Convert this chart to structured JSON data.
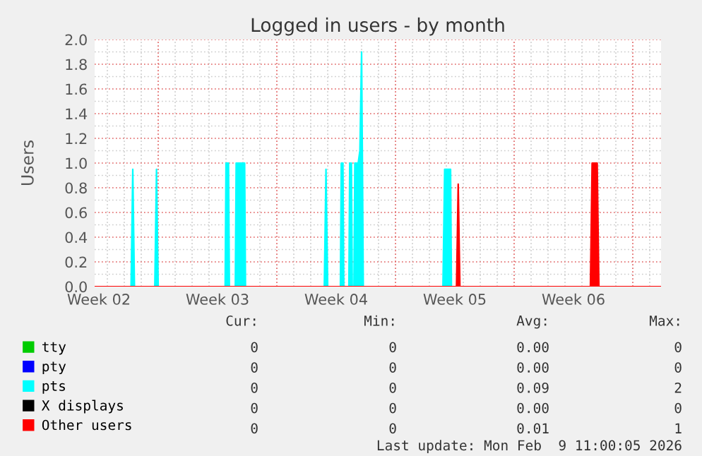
{
  "chart_data": {
    "type": "area",
    "title": "Logged in users - by month",
    "ylabel": "Users",
    "xlim": [
      "2026-01-08T06:00",
      "2026-02-10T16:00"
    ],
    "xticks": [
      {
        "value": "2026-01-08T12:00",
        "label": "Week 02"
      },
      {
        "value": "2026-01-15T12:00",
        "label": "Week 03"
      },
      {
        "value": "2026-01-22T12:00",
        "label": "Week 04"
      },
      {
        "value": "2026-01-29T12:00",
        "label": "Week 05"
      },
      {
        "value": "2026-02-05T12:00",
        "label": "Week 06"
      }
    ],
    "ylim": [
      0,
      2.0
    ],
    "yticks": [
      {
        "value": 0,
        "label": "0.0"
      },
      {
        "value": 0.2,
        "label": "0.2"
      },
      {
        "value": 0.4,
        "label": "0.4"
      },
      {
        "value": 0.6,
        "label": "0.6"
      },
      {
        "value": 0.8,
        "label": "0.8"
      },
      {
        "value": 1.0,
        "label": "1.0"
      },
      {
        "value": 1.2,
        "label": "1.2"
      },
      {
        "value": 1.4,
        "label": "1.4"
      },
      {
        "value": 1.6,
        "label": "1.6"
      },
      {
        "value": 1.8,
        "label": "1.8"
      },
      {
        "value": 2.0,
        "label": "2.0"
      }
    ],
    "grid": true,
    "legend": "bottom",
    "marker": "none",
    "series": [
      {
        "name": "tty",
        "color": "#00cc00"
      },
      {
        "name": "pty",
        "color": "#0000ff"
      },
      {
        "name": "pts",
        "color": "#00ffff",
        "x": [
          "2026-01-08T06:00",
          "2026-01-10T09:36",
          "2026-01-10T12:00",
          "2026-01-10T14:24",
          "2026-01-11T19:12",
          "2026-01-11T21:36",
          "2026-01-12T00:00",
          "2026-01-15T22:48",
          "2026-01-16T00:00",
          "2026-01-16T03:36",
          "2026-01-16T04:48",
          "2026-01-16T13:12",
          "2026-01-16T14:24",
          "2026-01-17T02:24",
          "2026-01-17T03:36",
          "2026-01-21T19:12",
          "2026-01-21T21:36",
          "2026-01-22T00:00",
          "2026-01-22T18:00",
          "2026-01-22T19:12",
          "2026-01-22T21:36",
          "2026-01-22T22:48",
          "2026-01-23T06:00",
          "2026-01-23T07:12",
          "2026-01-23T09:36",
          "2026-01-23T10:48",
          "2026-01-23T13:12",
          "2026-01-23T14:24",
          "2026-01-23T19:12",
          "2026-01-23T21:36",
          "2026-01-24T00:00",
          "2026-01-24T01:12",
          "2026-01-24T02:24",
          "2026-01-28T19:12",
          "2026-01-28T21:36",
          "2026-01-29T06:00",
          "2026-01-29T07:12",
          "2026-02-10T16:00"
        ],
        "values": [
          0,
          0,
          0.95,
          0,
          0,
          0.95,
          0,
          0,
          1,
          1,
          0,
          0,
          1,
          1,
          0,
          0,
          0.95,
          0,
          0,
          1,
          1,
          0,
          0,
          1,
          1,
          0,
          0,
          1,
          1,
          1.1,
          1.9,
          1,
          0,
          0,
          0.95,
          0.95,
          0,
          0
        ]
      },
      {
        "name": "X displays",
        "color": "#000000"
      },
      {
        "name": "Other users",
        "color": "#ff0000",
        "x": [
          "2026-01-08T06:00",
          "2026-01-29T14:24",
          "2026-01-29T16:48",
          "2026-01-29T19:12",
          "2026-02-06T12:00",
          "2026-02-06T14:24",
          "2026-02-06T21:36",
          "2026-02-07T00:00",
          "2026-02-10T16:00"
        ],
        "values": [
          0,
          0,
          0.83,
          0,
          0,
          1,
          1,
          0,
          0
        ]
      }
    ],
    "annotations": [
      "Cur:",
      "Min:",
      "Avg:",
      "Max:",
      "0",
      "0",
      "0.00",
      "0",
      "0",
      "0",
      "0.00",
      "0",
      "0",
      "0",
      "0.09",
      "2",
      "0",
      "0",
      "0.00",
      "0",
      "0",
      "0",
      "0.01",
      "1",
      "Last update: Mon Feb  9 11:00:05 2026"
    ]
  }
}
